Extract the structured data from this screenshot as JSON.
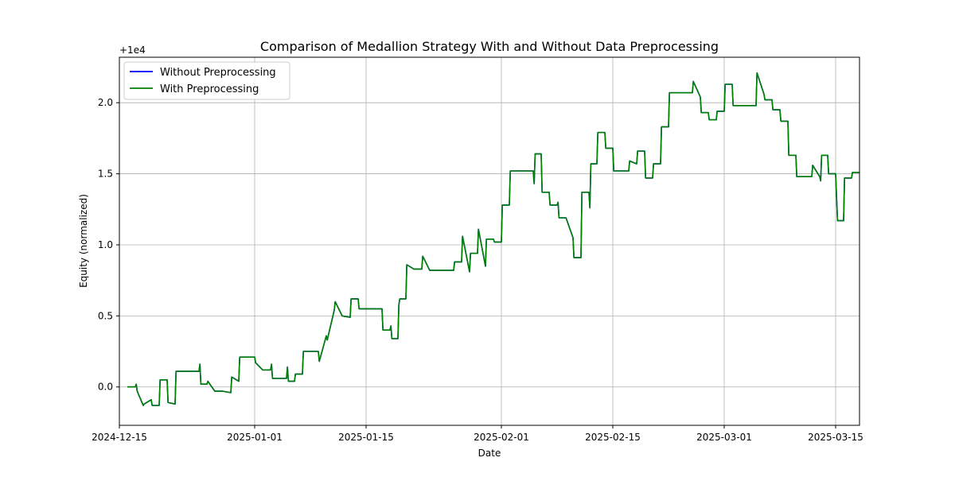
{
  "chart_data": {
    "type": "line",
    "title": "Comparison of Medallion Strategy With and Without Data Preprocessing",
    "xlabel": "Date",
    "ylabel": "Equity (normalized)",
    "offset_label": "+1e4",
    "xlim": [
      "2024-12-15",
      "2025-03-18"
    ],
    "ylim": [
      -0.27,
      2.32
    ],
    "x_ticks": [
      "2024-12-15",
      "2025-01-01",
      "2025-01-15",
      "2025-02-01",
      "2025-02-15",
      "2025-03-01",
      "2025-03-15"
    ],
    "y_ticks": [
      0.0,
      0.5,
      1.0,
      1.5,
      2.0
    ],
    "y_tick_labels": [
      "0.0",
      "0.5",
      "1.0",
      "1.5",
      "2.0"
    ],
    "grid": true,
    "legend": "top-left",
    "series": [
      {
        "name": "Without Preprocessing",
        "color": "#0000ff",
        "points": [
          [
            "2024-12-16",
            0.0
          ],
          [
            "2024-12-17",
            0.0
          ],
          [
            "2024-12-17",
            0.02
          ],
          [
            "2024-12-17",
            -0.03
          ],
          [
            "2024-12-18",
            -0.13
          ],
          [
            "2024-12-18",
            -0.12
          ],
          [
            "2024-12-19",
            -0.09
          ],
          [
            "2024-12-19",
            -0.13
          ],
          [
            "2024-12-20",
            -0.13
          ],
          [
            "2024-12-20",
            0.05
          ],
          [
            "2024-12-21",
            0.05
          ],
          [
            "2024-12-21",
            -0.11
          ],
          [
            "2024-12-22",
            -0.12
          ],
          [
            "2024-12-22",
            0.11
          ],
          [
            "2024-12-25",
            0.11
          ],
          [
            "2024-12-25",
            0.16
          ],
          [
            "2024-12-25",
            0.02
          ],
          [
            "2024-12-26",
            0.02
          ],
          [
            "2024-12-26",
            0.04
          ],
          [
            "2024-12-26",
            0.03
          ],
          [
            "2024-12-27",
            -0.03
          ],
          [
            "2024-12-28",
            -0.03
          ],
          [
            "2024-12-29",
            -0.04
          ],
          [
            "2024-12-29",
            0.07
          ],
          [
            "2024-12-30",
            0.04
          ],
          [
            "2024-12-30",
            0.21
          ],
          [
            "2025-01-01",
            0.21
          ],
          [
            "2025-01-01",
            0.17
          ],
          [
            "2025-01-02",
            0.12
          ],
          [
            "2025-01-03",
            0.12
          ],
          [
            "2025-01-03",
            0.16
          ],
          [
            "2025-01-03",
            0.06
          ],
          [
            "2025-01-05",
            0.06
          ],
          [
            "2025-01-05",
            0.14
          ],
          [
            "2025-01-05",
            0.04
          ],
          [
            "2025-01-06",
            0.04
          ],
          [
            "2025-01-06",
            0.09
          ],
          [
            "2025-01-07",
            0.09
          ],
          [
            "2025-01-07",
            0.25
          ],
          [
            "2025-01-09",
            0.25
          ],
          [
            "2025-01-09",
            0.18
          ],
          [
            "2025-01-10",
            0.36
          ],
          [
            "2025-01-10",
            0.33
          ],
          [
            "2025-01-11",
            0.54
          ],
          [
            "2025-01-11",
            0.6
          ],
          [
            "2025-01-12",
            0.5
          ],
          [
            "2025-01-13",
            0.49
          ],
          [
            "2025-01-13",
            0.62
          ],
          [
            "2025-01-14",
            0.62
          ],
          [
            "2025-01-14",
            0.55
          ],
          [
            "2025-01-17",
            0.55
          ],
          [
            "2025-01-17",
            0.4
          ],
          [
            "2025-01-18",
            0.4
          ],
          [
            "2025-01-18",
            0.43
          ],
          [
            "2025-01-18",
            0.34
          ],
          [
            "2025-01-19",
            0.34
          ],
          [
            "2025-01-19",
            0.58
          ],
          [
            "2025-01-19",
            0.62
          ],
          [
            "2025-01-20",
            0.62
          ],
          [
            "2025-01-20",
            0.86
          ],
          [
            "2025-01-21",
            0.83
          ],
          [
            "2025-01-22",
            0.83
          ],
          [
            "2025-01-22",
            0.92
          ],
          [
            "2025-01-23",
            0.82
          ],
          [
            "2025-01-26",
            0.82
          ],
          [
            "2025-01-26",
            0.88
          ],
          [
            "2025-01-27",
            0.88
          ],
          [
            "2025-01-27",
            1.06
          ],
          [
            "2025-01-28",
            0.81
          ],
          [
            "2025-01-28",
            0.94
          ],
          [
            "2025-01-29",
            0.94
          ],
          [
            "2025-01-29",
            1.11
          ],
          [
            "2025-01-30",
            0.85
          ],
          [
            "2025-01-30",
            1.04
          ],
          [
            "2025-01-31",
            1.04
          ],
          [
            "2025-01-31",
            1.02
          ],
          [
            "2025-02-01",
            1.02
          ],
          [
            "2025-02-01",
            1.28
          ],
          [
            "2025-02-02",
            1.28
          ],
          [
            "2025-02-02",
            1.52
          ],
          [
            "2025-02-05",
            1.52
          ],
          [
            "2025-02-05",
            1.43
          ],
          [
            "2025-02-05",
            1.64
          ],
          [
            "2025-02-06",
            1.64
          ],
          [
            "2025-02-06",
            1.37
          ],
          [
            "2025-02-07",
            1.37
          ],
          [
            "2025-02-07",
            1.28
          ],
          [
            "2025-02-08",
            1.28
          ],
          [
            "2025-02-08",
            1.3
          ],
          [
            "2025-02-08",
            1.19
          ],
          [
            "2025-02-09",
            1.19
          ],
          [
            "2025-02-09",
            1.19
          ],
          [
            "2025-02-10",
            1.05
          ],
          [
            "2025-02-10",
            0.91
          ],
          [
            "2025-02-11",
            0.91
          ],
          [
            "2025-02-11",
            1.37
          ],
          [
            "2025-02-12",
            1.37
          ],
          [
            "2025-02-12",
            1.26
          ],
          [
            "2025-02-12",
            1.57
          ],
          [
            "2025-02-13",
            1.57
          ],
          [
            "2025-02-13",
            1.79
          ],
          [
            "2025-02-14",
            1.79
          ],
          [
            "2025-02-14",
            1.68
          ],
          [
            "2025-02-15",
            1.68
          ],
          [
            "2025-02-15",
            1.52
          ],
          [
            "2025-02-17",
            1.52
          ],
          [
            "2025-02-17",
            1.59
          ],
          [
            "2025-02-18",
            1.57
          ],
          [
            "2025-02-18",
            1.66
          ],
          [
            "2025-02-19",
            1.66
          ],
          [
            "2025-02-19",
            1.47
          ],
          [
            "2025-02-20",
            1.47
          ],
          [
            "2025-02-20",
            1.57
          ],
          [
            "2025-02-21",
            1.57
          ],
          [
            "2025-02-21",
            1.83
          ],
          [
            "2025-02-22",
            1.83
          ],
          [
            "2025-02-22",
            2.07
          ],
          [
            "2025-02-25",
            2.07
          ],
          [
            "2025-02-25",
            2.15
          ],
          [
            "2025-02-26",
            2.04
          ],
          [
            "2025-02-26",
            1.93
          ],
          [
            "2025-02-27",
            1.93
          ],
          [
            "2025-02-27",
            1.88
          ],
          [
            "2025-02-28",
            1.88
          ],
          [
            "2025-02-28",
            1.94
          ],
          [
            "2025-03-01",
            1.94
          ],
          [
            "2025-03-01",
            2.13
          ],
          [
            "2025-03-02",
            2.13
          ],
          [
            "2025-03-02",
            1.98
          ],
          [
            "2025-03-05",
            1.98
          ],
          [
            "2025-03-05",
            2.21
          ],
          [
            "2025-03-06",
            2.06
          ],
          [
            "2025-03-06",
            2.02
          ],
          [
            "2025-03-07",
            2.02
          ],
          [
            "2025-03-07",
            1.95
          ],
          [
            "2025-03-08",
            1.95
          ],
          [
            "2025-03-08",
            1.87
          ],
          [
            "2025-03-09",
            1.87
          ],
          [
            "2025-03-09",
            1.63
          ],
          [
            "2025-03-10",
            1.63
          ],
          [
            "2025-03-10",
            1.48
          ],
          [
            "2025-03-12",
            1.48
          ],
          [
            "2025-03-12",
            1.56
          ],
          [
            "2025-03-13",
            1.48
          ],
          [
            "2025-03-13",
            1.45
          ],
          [
            "2025-03-13",
            1.63
          ],
          [
            "2025-03-14",
            1.63
          ],
          [
            "2025-03-14",
            1.5
          ],
          [
            "2025-03-15",
            1.5
          ],
          [
            "2025-03-15",
            1.33
          ],
          [
            "2025-03-15",
            1.17
          ],
          [
            "2025-03-16",
            1.17
          ],
          [
            "2025-03-16",
            1.47
          ],
          [
            "2025-03-17",
            1.47
          ],
          [
            "2025-03-17",
            1.51
          ],
          [
            "2025-03-18",
            1.51
          ]
        ]
      },
      {
        "name": "With Preprocessing",
        "color": "#008000",
        "points": "same_as_previous"
      }
    ]
  }
}
